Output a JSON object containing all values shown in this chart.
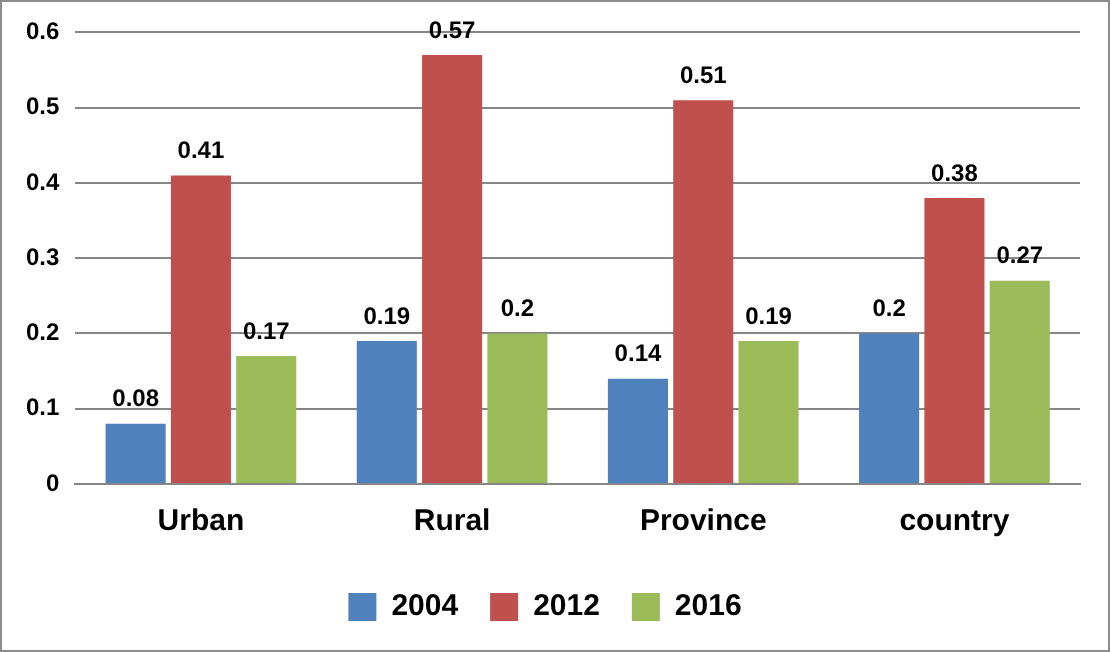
{
  "chart_data": {
    "type": "bar",
    "categories": [
      "Urban",
      "Rural",
      "Province",
      "country"
    ],
    "series": [
      {
        "name": "2004",
        "color": "#4f81bd",
        "values": [
          0.08,
          0.19,
          0.14,
          0.2
        ]
      },
      {
        "name": "2012",
        "color": "#c0504d",
        "values": [
          0.41,
          0.57,
          0.51,
          0.38
        ]
      },
      {
        "name": "2016",
        "color": "#9bbb59",
        "values": [
          0.17,
          0.2,
          0.19,
          0.27
        ]
      }
    ],
    "ylim": [
      0,
      0.6
    ],
    "yticks": [
      0,
      0.1,
      0.2,
      0.3,
      0.4,
      0.5,
      0.6
    ],
    "grid": "y",
    "legend": "bottom",
    "data_labels": true
  }
}
